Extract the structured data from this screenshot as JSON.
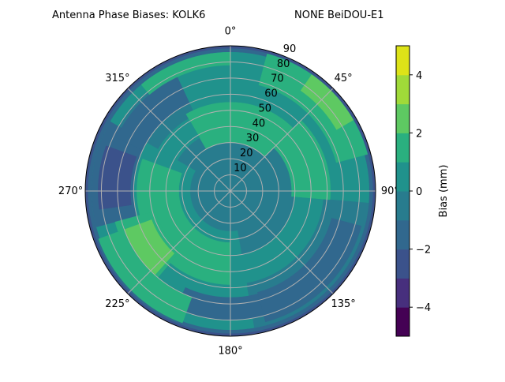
{
  "chart_data": {
    "type": "polar-contour",
    "title_left": "Antenna Phase Biases: KOLK6",
    "title_right": "NONE BeiDOU-E1",
    "angular_axis": {
      "direction": "clockwise",
      "zero_location": "north",
      "tick_labels": [
        "0°",
        "45°",
        "90°",
        "135°",
        "180°",
        "225°",
        "270°",
        "315°"
      ],
      "tick_values": [
        0,
        45,
        90,
        135,
        180,
        225,
        270,
        315
      ]
    },
    "radial_axis": {
      "range": [
        0,
        90
      ],
      "tick_values": [
        10,
        20,
        30,
        40,
        50,
        60,
        70,
        80,
        90
      ],
      "tick_labels": [
        "10",
        "20",
        "30",
        "40",
        "50",
        "60",
        "70",
        "80",
        "90"
      ],
      "label_angle": 22.5
    },
    "grid": true,
    "colorbar": {
      "label": "Bias (mm)",
      "range": [
        -5,
        5
      ],
      "levels": [
        -5,
        -4,
        -3,
        -2,
        -1,
        0,
        1,
        2,
        3,
        4,
        5
      ],
      "tick_values": [
        -4,
        -2,
        0,
        2,
        4
      ],
      "tick_labels": [
        "−4",
        "−2",
        "0",
        "2",
        "4"
      ],
      "colormap": "viridis",
      "band_colors": [
        "#440154",
        "#482475",
        "#414487",
        "#355f8d",
        "#2a788e",
        "#21918c",
        "#22a884",
        "#44bf70",
        "#7ad151",
        "#bddf26",
        "#e1e31a"
      ]
    },
    "regions_note_units": "azimuth deg, zenith deg, bias mm",
    "regions": [
      {
        "az": [
          0,
          360
        ],
        "zen": [
          0,
          90
        ],
        "value": -0.5
      },
      {
        "az": [
          0,
          360
        ],
        "zen": [
          86,
          90
        ],
        "value": -1.5
      },
      {
        "az": [
          0,
          360
        ],
        "zen": [
          88.5,
          90
        ],
        "value": -2.5
      },
      {
        "az": [
          0,
          360
        ],
        "zen": [
          40,
          86
        ],
        "value": 0.5
      },
      {
        "az": [
          280,
          335
        ],
        "zen": [
          52,
          80
        ],
        "value": -0.5
      },
      {
        "az": [
          255,
          300
        ],
        "zen": [
          55,
          86
        ],
        "value": -1.5
      },
      {
        "az": [
          262,
          290
        ],
        "zen": [
          62,
          82
        ],
        "value": -2.5
      },
      {
        "az": [
          295,
          335
        ],
        "zen": [
          60,
          78
        ],
        "value": -1.5
      },
      {
        "az": [
          95,
          170
        ],
        "zen": [
          58,
          86
        ],
        "value": -0.5
      },
      {
        "az": [
          105,
          165
        ],
        "zen": [
          65,
          84
        ],
        "value": -1.5
      },
      {
        "az": [
          165,
          205
        ],
        "zen": [
          66,
          80
        ],
        "value": -1.5
      },
      {
        "az": [
          330,
          360
        ],
        "zen": [
          30,
          55
        ],
        "value": 1.5
      },
      {
        "az": [
          0,
          45
        ],
        "zen": [
          30,
          55
        ],
        "value": 1.5
      },
      {
        "az": [
          45,
          95
        ],
        "zen": [
          38,
          62
        ],
        "value": 1.5
      },
      {
        "az": [
          300,
          330
        ],
        "zen": [
          38,
          50
        ],
        "value": 0.5
      },
      {
        "az": [
          170,
          300
        ],
        "zen": [
          25,
          60
        ],
        "value": 0.5
      },
      {
        "az": [
          180,
          290
        ],
        "zen": [
          32,
          58
        ],
        "value": 1.5
      },
      {
        "az": [
          220,
          255
        ],
        "zen": [
          48,
          74
        ],
        "value": 1.5
      },
      {
        "az": [
          222,
          250
        ],
        "zen": [
          52,
          72
        ],
        "value": 2.5
      },
      {
        "az": [
          15,
          75
        ],
        "zen": [
          68,
          88
        ],
        "value": 1.5
      },
      {
        "az": [
          35,
          60
        ],
        "zen": [
          76,
          88
        ],
        "value": 2.5
      },
      {
        "az": [
          200,
          250
        ],
        "zen": [
          70,
          87
        ],
        "value": 1.5
      },
      {
        "az": [
          320,
          360
        ],
        "zen": [
          78,
          86
        ],
        "value": 1.5
      },
      {
        "az": [
          0,
          80
        ],
        "zen": [
          0,
          22
        ],
        "value": -0.5
      }
    ]
  }
}
